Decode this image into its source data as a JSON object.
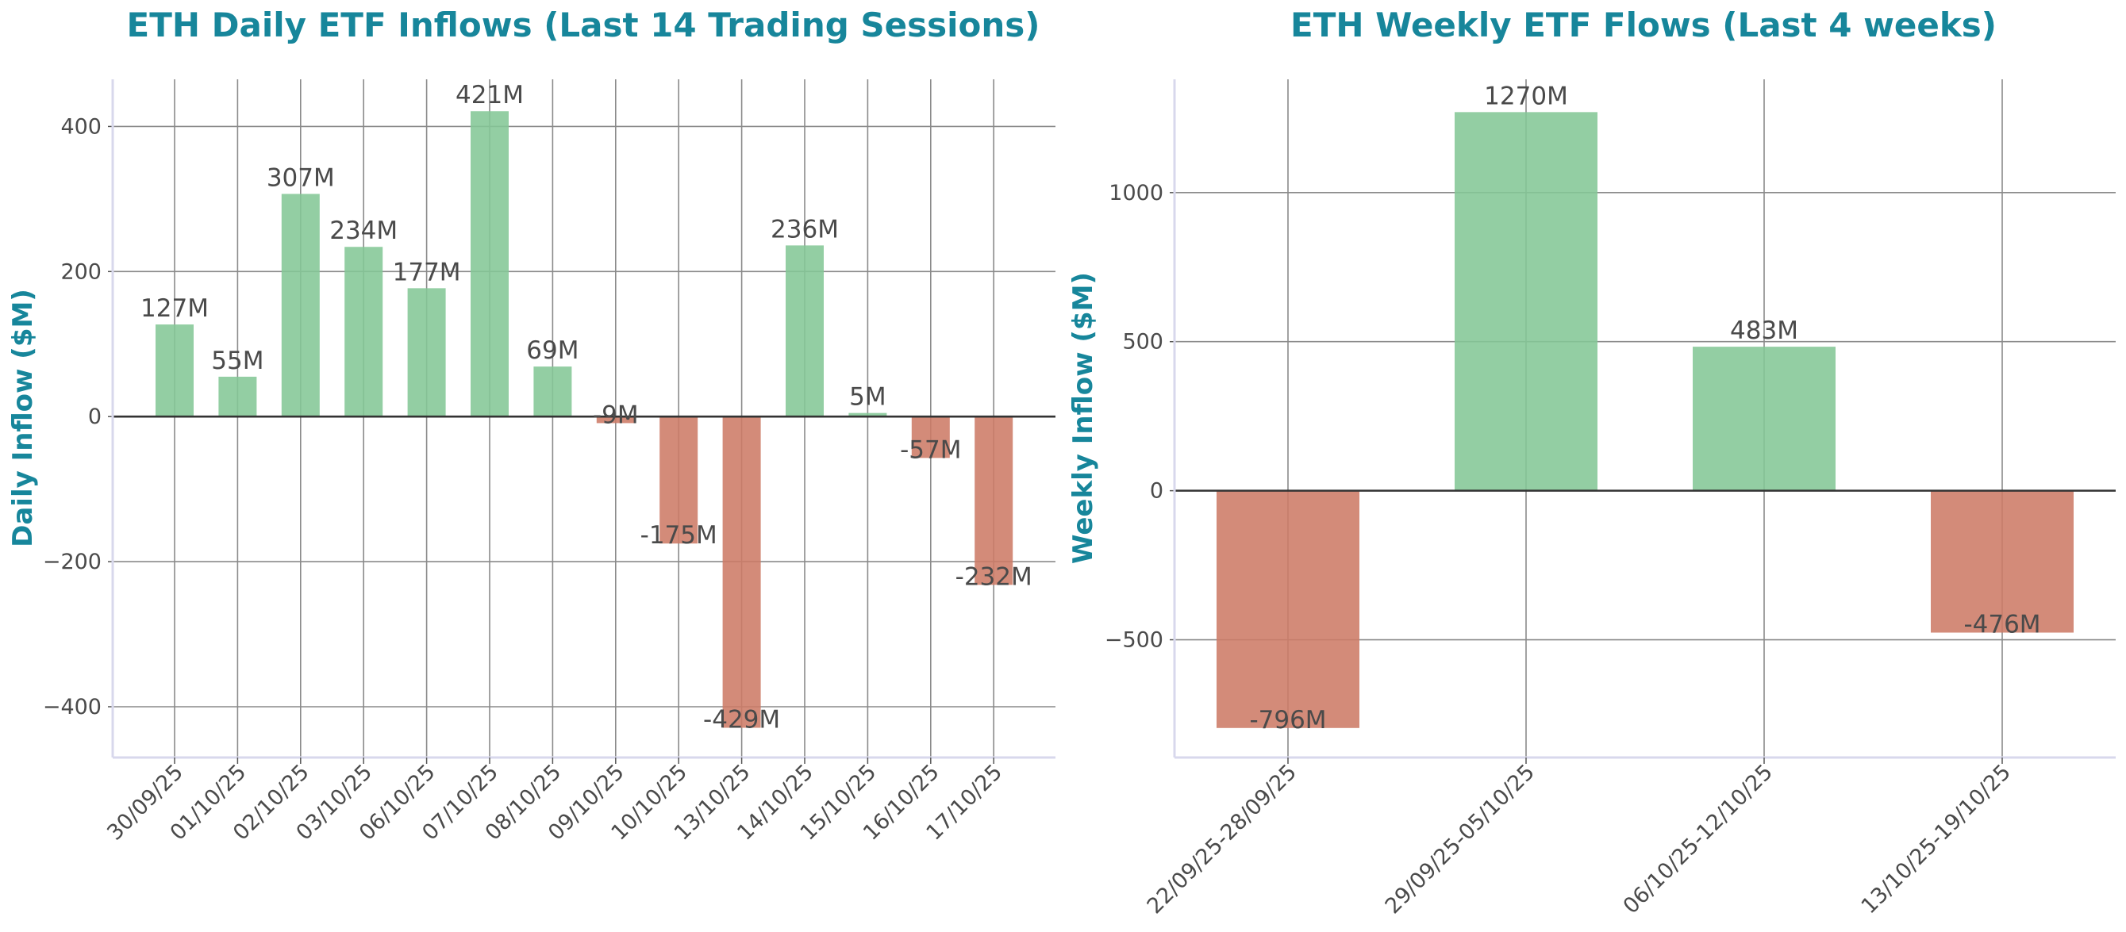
{
  "colors": {
    "positive": "#84c796",
    "negative": "#cd7b66",
    "title": "#17869b"
  },
  "chart_data": [
    {
      "type": "bar",
      "title": "ETH Daily ETF Inflows (Last 14 Trading Sessions)",
      "xlabel": "",
      "ylabel": "Daily Inflow ($M)",
      "categories": [
        "30/09/25",
        "01/10/25",
        "02/10/25",
        "03/10/25",
        "06/10/25",
        "07/10/25",
        "08/10/25",
        "09/10/25",
        "10/10/25",
        "13/10/25",
        "14/10/25",
        "15/10/25",
        "16/10/25",
        "17/10/25"
      ],
      "values": [
        127,
        55,
        307,
        234,
        177,
        421,
        69,
        -9,
        -175,
        -429,
        236,
        5,
        -57,
        -232
      ],
      "data_labels": [
        "127M",
        "55M",
        "307M",
        "234M",
        "177M",
        "421M",
        "69M",
        "-9M",
        "-175M",
        "-429M",
        "236M",
        "5M",
        "-57M",
        "-232M"
      ],
      "ylim": [
        -470,
        465
      ],
      "yticks": [
        400,
        200,
        0,
        -200,
        -400
      ],
      "ytick_labels": [
        "400",
        "200",
        "0",
        "−200",
        "−400"
      ],
      "grid": true
    },
    {
      "type": "bar",
      "title": "ETH Weekly ETF Flows (Last 4 weeks)",
      "xlabel": "",
      "ylabel": "Weekly Inflow ($M)",
      "categories": [
        "22/09/25-28/09/25",
        "29/09/25-05/10/25",
        "06/10/25-12/10/25",
        "13/10/25-19/10/25"
      ],
      "values": [
        -796,
        1270,
        483,
        -476
      ],
      "data_labels": [
        "-796M",
        "1270M",
        "483M",
        "-476M"
      ],
      "ylim": [
        -895,
        1380
      ],
      "yticks": [
        1000,
        500,
        0,
        -500
      ],
      "ytick_labels": [
        "1000",
        "500",
        "0",
        "−500"
      ],
      "grid": true
    }
  ]
}
